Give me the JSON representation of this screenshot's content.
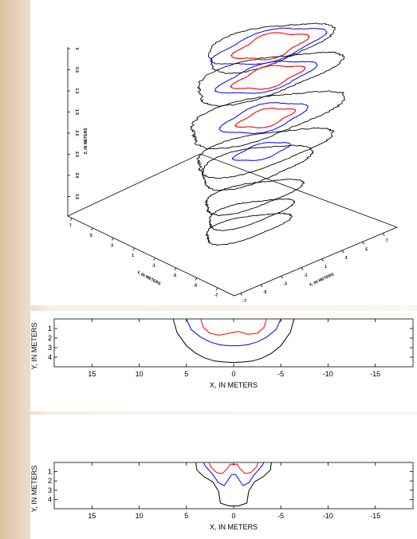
{
  "chart_data": [
    {
      "type": "line",
      "view": "3d-perspective",
      "zlabel": "Z, IN METERS",
      "ylabel": "Y, IN METERS",
      "xlabel": "X, IN METERS",
      "z_ticks": [
        "0",
        "0.5",
        "1.0",
        "1.5",
        "2.0",
        "2.5",
        "3.0",
        "3.5"
      ],
      "y_ticks": [
        "7",
        "5",
        "3",
        "1",
        "-1",
        "-3",
        "-5",
        "-7"
      ],
      "x_ticks": [
        "7",
        "5",
        "3",
        "1",
        "-1",
        "-3",
        "-5",
        "-7"
      ],
      "series": [
        {
          "color": "#000000"
        },
        {
          "color": "#0000ff"
        },
        {
          "color": "#ff0000"
        }
      ],
      "slice_depths": [
        0,
        0.5,
        1.0,
        1.5,
        2.0,
        2.5,
        3.0,
        3.5
      ]
    },
    {
      "type": "line",
      "xlabel": "X, IN METERS",
      "ylabel": "Y, IN METERS",
      "xlim": [
        19,
        -19
      ],
      "ylim": [
        0,
        5
      ],
      "x_ticks": [
        "15",
        "10",
        "5",
        "0",
        "-5",
        "-10",
        "-15"
      ],
      "y_ticks": [
        "1",
        "2",
        "3",
        "4"
      ],
      "series": [
        {
          "color": "#000000",
          "x": [
            6.4,
            6,
            5,
            4,
            3,
            2,
            1,
            0,
            -1,
            -2,
            -3,
            -4,
            -5,
            -6,
            -6.4
          ],
          "y": [
            0,
            1.4,
            2.8,
            3.6,
            4.1,
            4.4,
            4.5,
            4.55,
            4.5,
            4.4,
            4.1,
            3.6,
            2.8,
            1.4,
            0
          ]
        },
        {
          "color": "#0000ff",
          "x": [
            5,
            4.5,
            3.5,
            2.5,
            1.5,
            0.5,
            -0.5,
            -1.5,
            -2.5,
            -3.5,
            -4.5,
            -5
          ],
          "y": [
            0,
            1.1,
            1.9,
            2.4,
            2.7,
            2.8,
            2.8,
            2.7,
            2.4,
            1.9,
            1.1,
            0
          ]
        },
        {
          "color": "#ff0000",
          "x": [
            3.5,
            3.2,
            2.5,
            1.5,
            0.5,
            -0.5,
            -1.5,
            -2.5,
            -3.2,
            -3.5
          ],
          "y": [
            0,
            0.9,
            1.5,
            1.7,
            1.5,
            1.3,
            1.6,
            1.5,
            0.9,
            0
          ]
        }
      ]
    },
    {
      "type": "line",
      "xlabel": "X, IN METERS",
      "ylabel": "Y, IN METERS",
      "xlim": [
        19,
        -19
      ],
      "ylim": [
        0,
        5
      ],
      "x_ticks": [
        "15",
        "10",
        "5",
        "0",
        "-5",
        "-10",
        "-15"
      ],
      "y_ticks": [
        "1",
        "2",
        "3",
        "4"
      ],
      "series": [
        {
          "color": "#000000",
          "x": [
            4,
            3.9,
            3.2,
            2.2,
            1.6,
            1.4,
            0.5,
            -0.5,
            -1.4,
            -1.6,
            -2.2,
            -3.2,
            -3.9,
            -4
          ],
          "y": [
            0,
            0.8,
            1.5,
            2.1,
            3.1,
            4.4,
            4.7,
            4.7,
            4.4,
            3.1,
            2.1,
            1.5,
            0.8,
            0
          ]
        },
        {
          "color": "#0000ff",
          "x": [
            3.2,
            3,
            2.2,
            1.6,
            1,
            0.2,
            -0.2,
            -1,
            -1.6,
            -2.2,
            -3,
            -3.2
          ],
          "y": [
            0,
            0.4,
            1.3,
            2.2,
            2.5,
            1.3,
            1.3,
            2.5,
            2.2,
            1.3,
            0.4,
            0
          ]
        },
        {
          "color": "#ff0000",
          "x": [
            2.6,
            2.4,
            1.8,
            1.2,
            0.6,
            0.4,
            -0.4,
            -0.6,
            -1.2,
            -1.8,
            -2.4,
            -2.6
          ],
          "y": [
            0,
            0.5,
            1.1,
            1.2,
            0.6,
            0.2,
            0.2,
            0.6,
            1.2,
            1.1,
            0.5,
            0
          ]
        }
      ]
    }
  ]
}
